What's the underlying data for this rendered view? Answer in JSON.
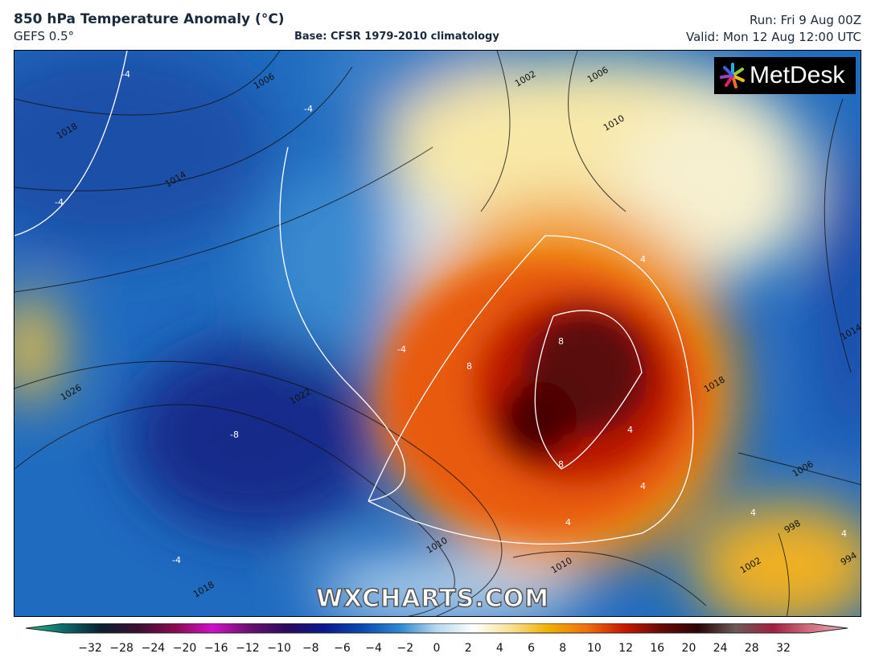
{
  "header": {
    "title": "850 hPa Temperature Anomaly (°C)",
    "model": "GEFS 0.5°",
    "base": "Base: CFSR 1979-2010 climatology",
    "run": "Run: Fri 9 Aug 00Z",
    "valid": "Valid: Mon 12 Aug 12:00 UTC"
  },
  "logo": {
    "text": "MetDesk",
    "icon": "metdesk-burst-icon"
  },
  "watermark": "WXCHARTS.COM",
  "isobar_labels": [
    "1006",
    "1002",
    "1006",
    "1018",
    "1014",
    "1010",
    "1026",
    "1022",
    "1018",
    "1014",
    "1018",
    "1010",
    "1010",
    "1006",
    "998",
    "994",
    "1002"
  ],
  "anomaly_labels": [
    "-4",
    "-4",
    "-4",
    "-4",
    "-8",
    "-4",
    "4",
    "8",
    "8",
    "4",
    "4",
    "4",
    "8",
    "4",
    "4"
  ],
  "colorbar": {
    "ticks": [
      "−32",
      "−28",
      "−24",
      "−20",
      "−16",
      "−12",
      "−10",
      "−8",
      "−6",
      "−4",
      "−2",
      "0",
      "2",
      "4",
      "6",
      "8",
      "10",
      "12",
      "16",
      "20",
      "24",
      "28",
      "32"
    ],
    "colors": [
      "#1fbf8f",
      "#0c6b6b",
      "#0a2030",
      "#3a1030",
      "#8a0a50",
      "#d010c8",
      "#6a1070",
      "#2a0a60",
      "#0a1a90",
      "#0a4ab0",
      "#2a88d0",
      "#b8d8ee",
      "#ffffff",
      "#f8e090",
      "#f0b000",
      "#f07010",
      "#c81a00",
      "#6a0a08",
      "#2a0606",
      "#6a5a58",
      "#a02040",
      "#d07080",
      "#f0a8c0"
    ],
    "unit": "°C"
  }
}
